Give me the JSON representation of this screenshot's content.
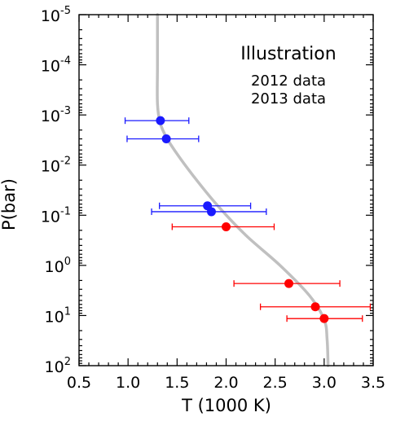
{
  "chart_data": {
    "type": "scatter",
    "xlabel": "T (1000 K)",
    "ylabel": "P(bar)",
    "xlim": [
      0.5,
      3.5
    ],
    "ylim_log10": [
      -5,
      2
    ],
    "y_scale": "log",
    "y_inverted": true,
    "x_ticks": [
      0.5,
      1.0,
      1.5,
      2.0,
      2.5,
      3.0,
      3.5
    ],
    "x_tick_labels": [
      "0.5",
      "1.0",
      "1.5",
      "2.0",
      "2.5",
      "3.0",
      "3.5"
    ],
    "y_ticks_log10": [
      -5,
      -4,
      -3,
      -2,
      -1,
      0,
      1,
      2
    ],
    "y_tick_labels": [
      {
        "base": "10",
        "exp": "-5"
      },
      {
        "base": "10",
        "exp": "-4"
      },
      {
        "base": "10",
        "exp": "-3"
      },
      {
        "base": "10",
        "exp": "-2"
      },
      {
        "base": "10",
        "exp": "-1"
      },
      {
        "base": "10",
        "exp": "0"
      },
      {
        "base": "10",
        "exp": "1"
      },
      {
        "base": "10",
        "exp": "2"
      }
    ],
    "legend": {
      "title": "Illustration",
      "title_color": "#777777",
      "position": "top-right"
    },
    "profile": {
      "color": "#c0c0c0",
      "points": [
        {
          "x": 1.3,
          "y": 1e-05
        },
        {
          "x": 1.3,
          "y": 0.0001
        },
        {
          "x": 1.3,
          "y": 0.0006
        },
        {
          "x": 1.33,
          "y": 0.0015
        },
        {
          "x": 1.4,
          "y": 0.003
        },
        {
          "x": 1.5,
          "y": 0.006
        },
        {
          "x": 1.65,
          "y": 0.015
        },
        {
          "x": 1.9,
          "y": 0.06
        },
        {
          "x": 2.2,
          "y": 0.25
        },
        {
          "x": 2.55,
          "y": 1.0
        },
        {
          "x": 2.85,
          "y": 4.0
        },
        {
          "x": 3.0,
          "y": 12.0
        },
        {
          "x": 3.03,
          "y": 30.0
        },
        {
          "x": 3.04,
          "y": 100.0
        }
      ]
    },
    "series": [
      {
        "name": "2012 data",
        "color": "#1a1aff",
        "points": [
          {
            "x": 1.33,
            "y": 0.0013,
            "xerr": [
              0.97,
              1.62
            ]
          },
          {
            "x": 1.39,
            "y": 0.003,
            "xerr": [
              0.99,
              1.72
            ]
          },
          {
            "x": 1.81,
            "y": 0.065,
            "xerr": [
              1.32,
              2.25
            ]
          },
          {
            "x": 1.85,
            "y": 0.085,
            "xerr": [
              1.24,
              2.41
            ]
          }
        ]
      },
      {
        "name": "2013 data",
        "color": "#ff0000",
        "points": [
          {
            "x": 2.0,
            "y": 0.17,
            "xerr": [
              1.45,
              2.49
            ]
          },
          {
            "x": 2.64,
            "y": 2.3,
            "xerr": [
              2.08,
              3.16
            ]
          },
          {
            "x": 2.91,
            "y": 6.7,
            "xerr": [
              2.35,
              3.47
            ]
          },
          {
            "x": 3.0,
            "y": 11.5,
            "xerr": [
              2.62,
              3.39
            ]
          }
        ]
      }
    ]
  }
}
